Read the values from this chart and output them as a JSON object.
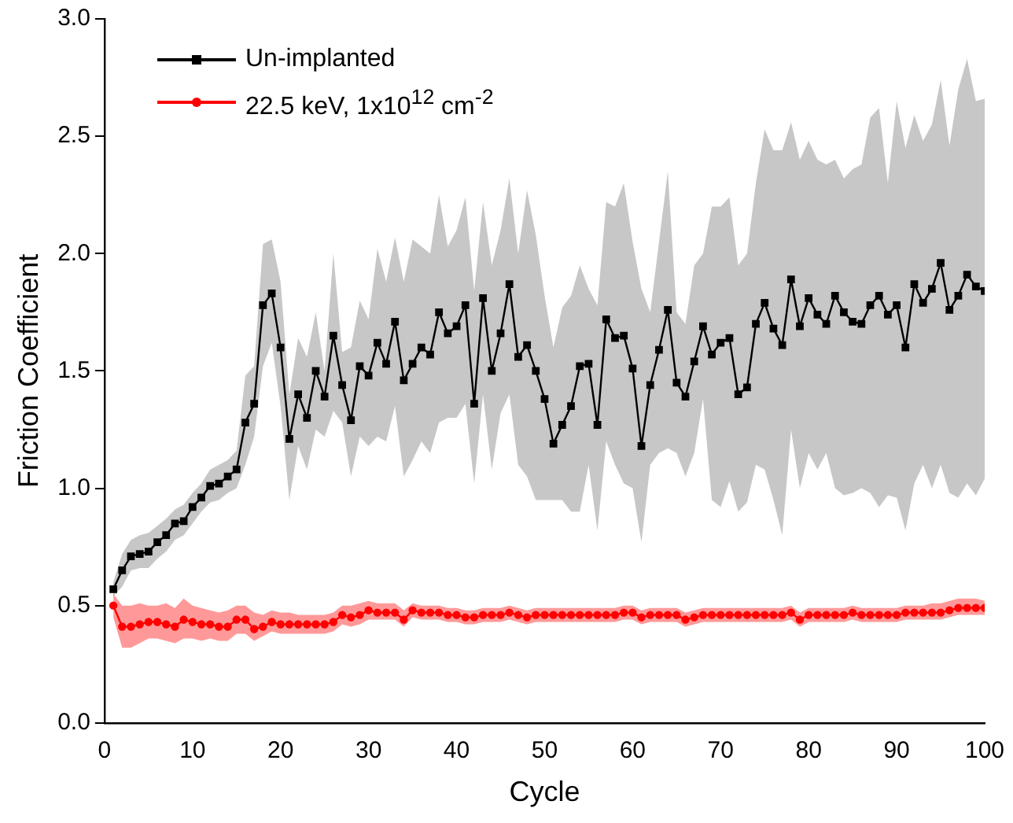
{
  "chart_data": {
    "type": "line",
    "xlabel": "Cycle",
    "ylabel": "Friction Coefficient",
    "x": [
      1,
      2,
      3,
      4,
      5,
      6,
      7,
      8,
      9,
      10,
      11,
      12,
      13,
      14,
      15,
      16,
      17,
      18,
      19,
      20,
      21,
      22,
      23,
      24,
      25,
      26,
      27,
      28,
      29,
      30,
      31,
      32,
      33,
      34,
      35,
      36,
      37,
      38,
      39,
      40,
      41,
      42,
      43,
      44,
      45,
      46,
      47,
      48,
      49,
      50,
      51,
      52,
      53,
      54,
      55,
      56,
      57,
      58,
      59,
      60,
      61,
      62,
      63,
      64,
      65,
      66,
      67,
      68,
      69,
      70,
      71,
      72,
      73,
      74,
      75,
      76,
      77,
      78,
      79,
      80,
      81,
      82,
      83,
      84,
      85,
      86,
      87,
      88,
      89,
      90,
      91,
      92,
      93,
      94,
      95,
      96,
      97,
      98,
      99,
      100
    ],
    "series": [
      {
        "name": "Un-implanted",
        "color": "#000000",
        "marker": "square",
        "values": [
          0.57,
          0.65,
          0.71,
          0.72,
          0.73,
          0.77,
          0.8,
          0.85,
          0.86,
          0.92,
          0.96,
          1.01,
          1.02,
          1.05,
          1.08,
          1.28,
          1.36,
          1.78,
          1.83,
          1.6,
          1.21,
          1.4,
          1.3,
          1.5,
          1.39,
          1.65,
          1.44,
          1.29,
          1.52,
          1.48,
          1.62,
          1.53,
          1.71,
          1.46,
          1.53,
          1.6,
          1.57,
          1.75,
          1.66,
          1.69,
          1.78,
          1.36,
          1.81,
          1.5,
          1.66,
          1.87,
          1.56,
          1.61,
          1.5,
          1.38,
          1.19,
          1.27,
          1.35,
          1.52,
          1.53,
          1.27,
          1.72,
          1.64,
          1.65,
          1.51,
          1.18,
          1.44,
          1.59,
          1.76,
          1.45,
          1.39,
          1.54,
          1.69,
          1.57,
          1.62,
          1.64,
          1.4,
          1.43,
          1.7,
          1.79,
          1.68,
          1.61,
          1.89,
          1.69,
          1.81,
          1.74,
          1.7,
          1.82,
          1.75,
          1.71,
          1.7,
          1.78,
          1.82,
          1.74,
          1.78,
          1.6,
          1.87,
          1.79,
          1.85,
          1.96,
          1.76,
          1.82,
          1.91,
          1.86,
          1.84
        ],
        "upper": [
          0.6,
          0.72,
          0.78,
          0.8,
          0.81,
          0.84,
          0.87,
          0.91,
          0.93,
          0.98,
          1.02,
          1.08,
          1.1,
          1.12,
          1.16,
          1.48,
          1.52,
          2.04,
          2.06,
          1.88,
          1.4,
          1.64,
          1.56,
          1.75,
          1.5,
          2.0,
          1.58,
          1.6,
          1.8,
          1.72,
          2.02,
          1.88,
          2.07,
          1.88,
          2.06,
          2.03,
          2.0,
          2.25,
          2.03,
          2.1,
          2.24,
          1.84,
          2.22,
          1.95,
          2.1,
          2.32,
          2.0,
          2.27,
          2.08,
          1.82,
          1.6,
          1.77,
          1.82,
          1.95,
          1.85,
          1.78,
          2.22,
          2.2,
          2.3,
          2.05,
          1.85,
          1.75,
          2.05,
          2.35,
          1.75,
          1.7,
          1.95,
          2.0,
          2.2,
          2.2,
          2.24,
          1.95,
          2.0,
          2.3,
          2.53,
          2.44,
          2.44,
          2.56,
          2.4,
          2.48,
          2.4,
          2.38,
          2.4,
          2.32,
          2.36,
          2.38,
          2.58,
          2.62,
          2.3,
          2.65,
          2.45,
          2.59,
          2.48,
          2.55,
          2.74,
          2.46,
          2.7,
          2.83,
          2.65,
          2.66
        ],
        "lower": [
          0.54,
          0.58,
          0.65,
          0.66,
          0.66,
          0.7,
          0.73,
          0.78,
          0.8,
          0.85,
          0.9,
          0.94,
          0.95,
          0.98,
          1.0,
          1.1,
          1.22,
          1.52,
          1.62,
          1.35,
          0.95,
          1.18,
          1.08,
          1.25,
          1.22,
          1.33,
          1.28,
          1.05,
          1.22,
          1.18,
          1.22,
          1.2,
          1.35,
          1.05,
          1.12,
          1.2,
          1.15,
          1.28,
          1.3,
          1.3,
          1.36,
          1.02,
          1.4,
          1.08,
          1.32,
          1.4,
          1.1,
          1.05,
          0.95,
          0.95,
          0.95,
          0.95,
          0.9,
          0.9,
          1.1,
          0.82,
          1.2,
          1.1,
          1.02,
          1.0,
          0.77,
          1.1,
          1.15,
          1.17,
          1.15,
          1.05,
          1.15,
          1.38,
          0.95,
          0.92,
          1.03,
          0.9,
          0.94,
          1.1,
          1.08,
          0.95,
          0.8,
          1.25,
          1.0,
          1.15,
          1.08,
          1.15,
          1.0,
          0.97,
          0.98,
          1.0,
          0.98,
          0.92,
          0.97,
          0.96,
          0.82,
          1.02,
          1.1,
          1.0,
          1.1,
          0.98,
          0.96,
          1.02,
          0.97,
          1.04
        ]
      },
      {
        "name": "22.5 keV, 1x10$^{12}$ cm$^{-2}$",
        "color": "#ff0000",
        "marker": "circle",
        "values": [
          0.5,
          0.41,
          0.41,
          0.42,
          0.43,
          0.43,
          0.42,
          0.41,
          0.44,
          0.43,
          0.42,
          0.42,
          0.41,
          0.41,
          0.44,
          0.44,
          0.4,
          0.41,
          0.43,
          0.42,
          0.42,
          0.42,
          0.42,
          0.42,
          0.42,
          0.43,
          0.46,
          0.45,
          0.46,
          0.48,
          0.47,
          0.47,
          0.47,
          0.44,
          0.48,
          0.47,
          0.47,
          0.47,
          0.46,
          0.46,
          0.45,
          0.45,
          0.46,
          0.46,
          0.46,
          0.47,
          0.46,
          0.45,
          0.46,
          0.46,
          0.46,
          0.46,
          0.46,
          0.46,
          0.46,
          0.46,
          0.46,
          0.46,
          0.47,
          0.47,
          0.45,
          0.46,
          0.46,
          0.46,
          0.46,
          0.44,
          0.45,
          0.46,
          0.46,
          0.46,
          0.46,
          0.46,
          0.46,
          0.46,
          0.46,
          0.46,
          0.46,
          0.47,
          0.44,
          0.46,
          0.46,
          0.46,
          0.46,
          0.46,
          0.47,
          0.46,
          0.46,
          0.46,
          0.46,
          0.46,
          0.47,
          0.47,
          0.47,
          0.47,
          0.47,
          0.48,
          0.49,
          0.49,
          0.49,
          0.49
        ],
        "upper": [
          0.55,
          0.5,
          0.5,
          0.51,
          0.5,
          0.5,
          0.51,
          0.49,
          0.53,
          0.5,
          0.49,
          0.48,
          0.47,
          0.48,
          0.5,
          0.5,
          0.47,
          0.46,
          0.48,
          0.47,
          0.47,
          0.46,
          0.46,
          0.46,
          0.46,
          0.47,
          0.5,
          0.5,
          0.51,
          0.52,
          0.51,
          0.51,
          0.51,
          0.48,
          0.51,
          0.5,
          0.5,
          0.5,
          0.49,
          0.49,
          0.48,
          0.48,
          0.49,
          0.49,
          0.49,
          0.5,
          0.49,
          0.48,
          0.49,
          0.49,
          0.49,
          0.49,
          0.49,
          0.49,
          0.49,
          0.49,
          0.49,
          0.49,
          0.5,
          0.5,
          0.48,
          0.49,
          0.49,
          0.49,
          0.49,
          0.47,
          0.48,
          0.49,
          0.49,
          0.49,
          0.49,
          0.49,
          0.49,
          0.49,
          0.49,
          0.49,
          0.49,
          0.5,
          0.47,
          0.49,
          0.49,
          0.49,
          0.49,
          0.49,
          0.5,
          0.49,
          0.49,
          0.49,
          0.49,
          0.49,
          0.5,
          0.5,
          0.5,
          0.51,
          0.51,
          0.52,
          0.53,
          0.53,
          0.53,
          0.52
        ],
        "lower": [
          0.45,
          0.32,
          0.32,
          0.34,
          0.36,
          0.36,
          0.35,
          0.34,
          0.36,
          0.36,
          0.35,
          0.36,
          0.35,
          0.35,
          0.38,
          0.38,
          0.35,
          0.37,
          0.39,
          0.38,
          0.38,
          0.38,
          0.38,
          0.38,
          0.38,
          0.39,
          0.42,
          0.41,
          0.42,
          0.44,
          0.44,
          0.44,
          0.44,
          0.41,
          0.45,
          0.44,
          0.44,
          0.44,
          0.43,
          0.43,
          0.42,
          0.42,
          0.43,
          0.43,
          0.43,
          0.44,
          0.43,
          0.42,
          0.43,
          0.43,
          0.43,
          0.43,
          0.43,
          0.43,
          0.43,
          0.43,
          0.43,
          0.43,
          0.44,
          0.44,
          0.42,
          0.43,
          0.43,
          0.43,
          0.43,
          0.41,
          0.42,
          0.43,
          0.43,
          0.43,
          0.43,
          0.43,
          0.43,
          0.43,
          0.43,
          0.43,
          0.43,
          0.44,
          0.41,
          0.43,
          0.43,
          0.43,
          0.43,
          0.43,
          0.44,
          0.43,
          0.43,
          0.43,
          0.43,
          0.43,
          0.44,
          0.44,
          0.44,
          0.44,
          0.44,
          0.45,
          0.46,
          0.46,
          0.46,
          0.46
        ]
      }
    ],
    "xlim": [
      0,
      100
    ],
    "xticks": [
      0,
      10,
      20,
      30,
      40,
      50,
      60,
      70,
      80,
      90,
      100
    ],
    "ylim": [
      0,
      3
    ],
    "yticks": [
      {
        "value": 0,
        "label": "0.0"
      },
      0.5,
      {
        "value": 1,
        "label": "1.0"
      },
      1.5,
      {
        "value": 2,
        "label": "2.0"
      },
      2.5,
      {
        "value": 3,
        "label": "3.0"
      }
    ],
    "grid": false,
    "legend": "top left",
    "line_style": "solid"
  }
}
